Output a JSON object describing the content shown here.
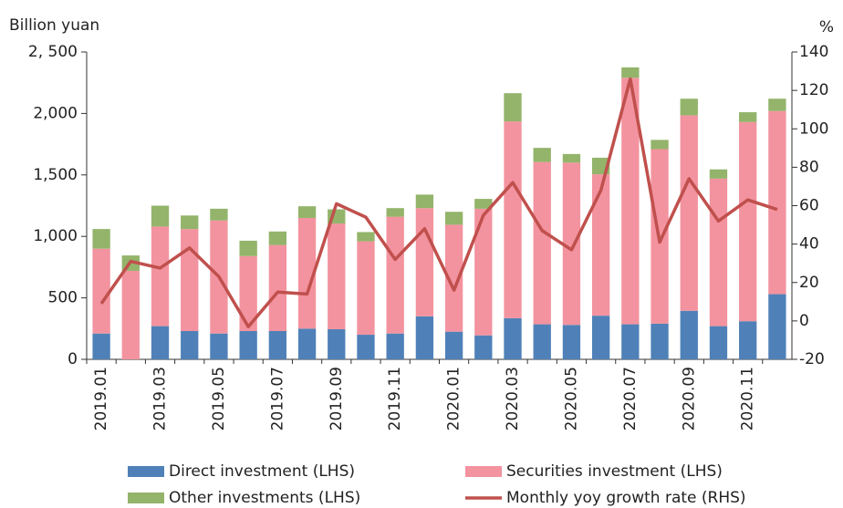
{
  "chart_data": {
    "type": "bar",
    "y_label": "Billion yuan",
    "y2_label": "%",
    "categories": [
      "2019.01",
      null,
      "2019.03",
      null,
      "2019.05",
      null,
      "2019.07",
      null,
      "2019.09",
      null,
      "2019.11",
      null,
      "2020.01",
      null,
      "2020.03",
      null,
      "2020.05",
      null,
      "2020.07",
      null,
      "2020.09",
      null,
      "2020.11",
      null
    ],
    "stacked": true,
    "series": [
      {
        "name": "Direct investment (LHS)",
        "color": "#4f81b8",
        "values": [
          210,
          0,
          270,
          230,
          210,
          230,
          230,
          250,
          245,
          200,
          210,
          350,
          225,
          195,
          335,
          285,
          280,
          355,
          285,
          290,
          395,
          270,
          310,
          530
        ]
      },
      {
        "name": "Securities investment (LHS)",
        "color": "#f3939f",
        "values": [
          690,
          720,
          810,
          830,
          920,
          610,
          700,
          900,
          860,
          760,
          950,
          880,
          870,
          1030,
          1600,
          1320,
          1320,
          1150,
          2005,
          1420,
          1590,
          1200,
          1620,
          1490
        ]
      },
      {
        "name": "Other investments (LHS)",
        "color": "#93b46a",
        "values": [
          160,
          125,
          170,
          110,
          95,
          125,
          110,
          95,
          115,
          75,
          70,
          110,
          105,
          80,
          230,
          115,
          70,
          135,
          85,
          75,
          135,
          75,
          80,
          100
        ]
      },
      {
        "name": "Monthly yoy growth rate (RHS)",
        "color": "#c0504d",
        "type": "line",
        "axis": "y2",
        "values": [
          9,
          31,
          27.5,
          38,
          23,
          -3,
          15,
          14,
          61,
          54,
          32,
          48,
          16,
          55,
          72,
          47,
          37,
          68,
          126,
          41,
          74,
          52,
          63,
          58
        ]
      }
    ],
    "ylim": [
      0,
      2500
    ],
    "yticks": [
      0,
      500,
      {
        "value": 1000,
        "label": "1,000"
      },
      {
        "value": 1500,
        "label": "1,500"
      },
      {
        "value": 2000,
        "label": "2,000"
      },
      {
        "value": 2500,
        "label": "2, 500"
      }
    ],
    "y2lim": [
      -20,
      140
    ],
    "y2ticks": [
      -20,
      0,
      20,
      40,
      60,
      80,
      100,
      120,
      140
    ],
    "grid": false,
    "legend": "bottom"
  }
}
